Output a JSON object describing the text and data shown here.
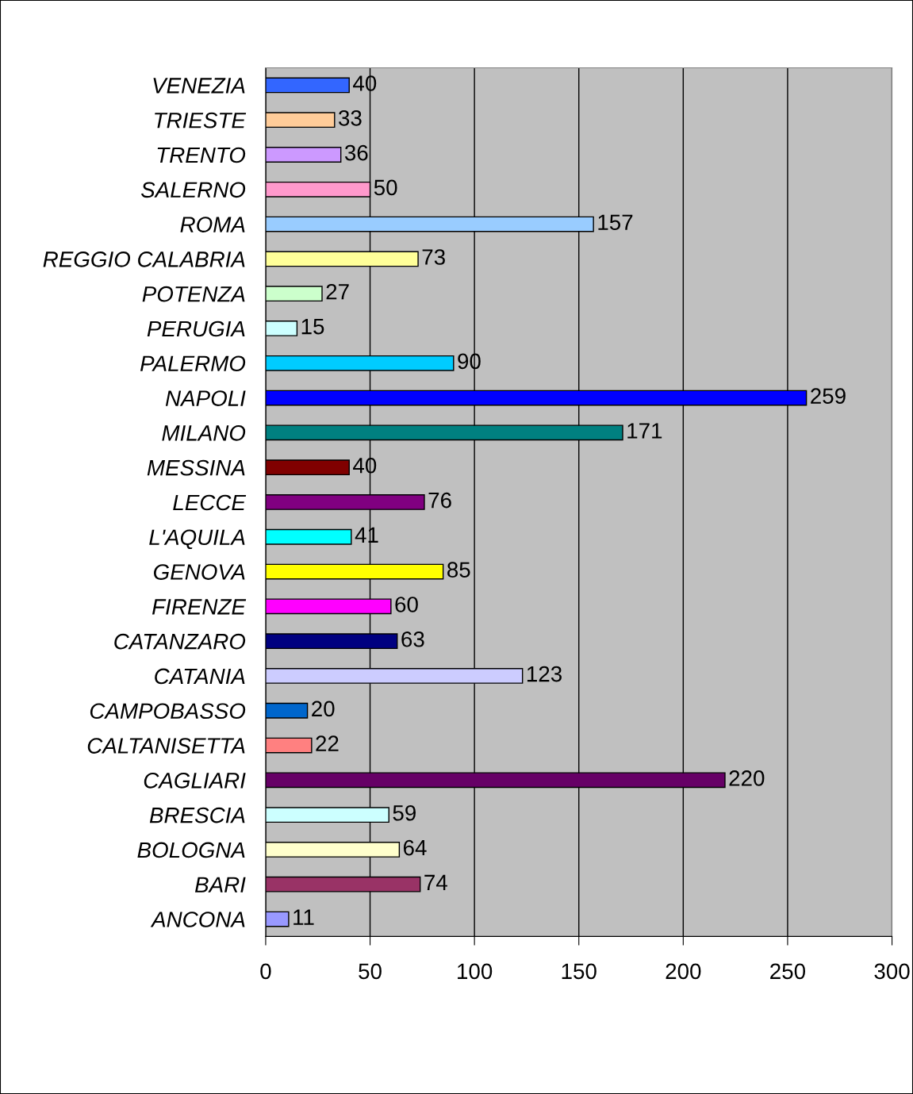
{
  "chart_data": {
    "type": "bar",
    "orientation": "horizontal",
    "categories": [
      "VENEZIA",
      "TRIESTE",
      "TRENTO",
      "SALERNO",
      "ROMA",
      "REGGIO CALABRIA",
      "POTENZA",
      "PERUGIA",
      "PALERMO",
      "NAPOLI",
      "MILANO",
      "MESSINA",
      "LECCE",
      "L'AQUILA",
      "GENOVA",
      "FIRENZE",
      "CATANZARO",
      "CATANIA",
      "CAMPOBASSO",
      "CALTANISETTA",
      "CAGLIARI",
      "BRESCIA",
      "BOLOGNA",
      "BARI",
      "ANCONA"
    ],
    "values": [
      40,
      33,
      36,
      50,
      157,
      73,
      27,
      15,
      90,
      259,
      171,
      40,
      76,
      41,
      85,
      60,
      63,
      123,
      20,
      22,
      220,
      59,
      64,
      74,
      11
    ],
    "colors": [
      "#3366ff",
      "#ffcc99",
      "#cc99ff",
      "#ff99cc",
      "#99ccff",
      "#ffff99",
      "#ccffcc",
      "#ccffff",
      "#00ccff",
      "#0000ff",
      "#008080",
      "#800000",
      "#800080",
      "#00ffff",
      "#ffff00",
      "#ff00ff",
      "#000080",
      "#ccccff",
      "#0066cc",
      "#ff8080",
      "#660066",
      "#ccffff",
      "#ffffcc",
      "#993366",
      "#9999ff"
    ],
    "xlim": [
      0,
      300
    ],
    "xticks": [
      0,
      50,
      100,
      150,
      200,
      250,
      300
    ],
    "grid": "x",
    "data_labels": true
  }
}
